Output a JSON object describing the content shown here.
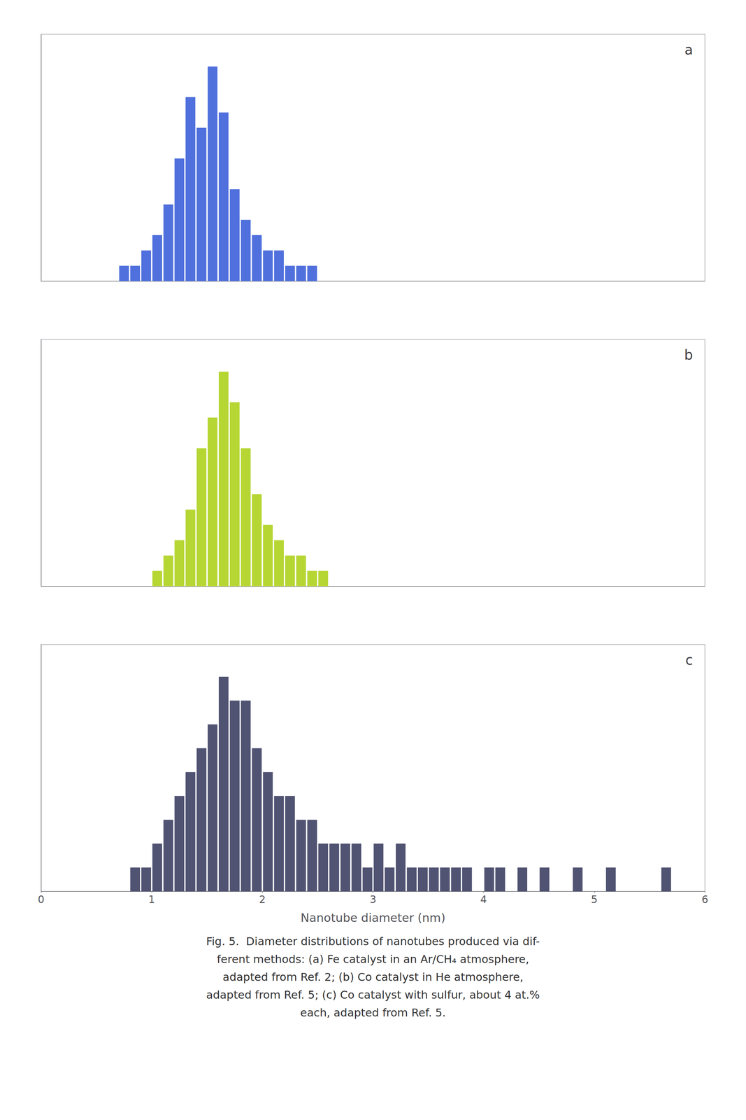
{
  "chart_data": [
    {
      "type": "bar",
      "title": "a",
      "x": [
        0.7,
        0.8,
        0.9,
        1.0,
        1.1,
        1.2,
        1.3,
        1.4,
        1.5,
        1.6,
        1.7,
        1.8,
        1.9,
        2.0,
        2.1,
        2.2,
        2.3,
        2.4,
        2.5
      ],
      "values": [
        1,
        1,
        2,
        3,
        5,
        8,
        12,
        10,
        14,
        11,
        6,
        4,
        3,
        2,
        2,
        1,
        1,
        1,
        0
      ],
      "xlim": [
        0,
        6
      ],
      "ylim": [
        0,
        16.1
      ],
      "grid": false,
      "tick_labels": false
    },
    {
      "type": "bar",
      "title": "b",
      "x": [
        1.0,
        1.1,
        1.2,
        1.3,
        1.4,
        1.5,
        1.6,
        1.7,
        1.8,
        1.9,
        2.0,
        2.1,
        2.2,
        2.3,
        2.4,
        2.5,
        2.6,
        2.7
      ],
      "values": [
        1,
        2,
        3,
        5,
        9,
        11,
        14,
        12,
        9,
        6,
        4,
        3,
        2,
        2,
        1,
        1,
        0,
        0
      ],
      "xlim": [
        0,
        6
      ],
      "ylim": [
        0,
        16.1
      ],
      "grid": false,
      "tick_labels": false
    },
    {
      "type": "bar",
      "title": "c",
      "x": [
        0.8,
        0.9,
        1.0,
        1.1,
        1.2,
        1.3,
        1.4,
        1.5,
        1.6,
        1.7,
        1.8,
        1.9,
        2.0,
        2.1,
        2.2,
        2.3,
        2.4,
        2.5,
        2.6,
        2.7,
        2.8,
        2.9,
        3.0,
        3.1,
        3.2,
        3.3,
        3.4,
        3.5,
        3.6,
        3.7,
        3.8,
        3.9,
        4.0,
        4.1,
        4.2,
        4.3,
        4.4,
        4.5,
        4.6,
        4.7,
        4.8,
        4.9,
        5.0,
        5.1,
        5.2,
        5.3,
        5.4,
        5.5,
        5.6,
        5.7,
        5.8
      ],
      "values": [
        1,
        1,
        2,
        3,
        4,
        5,
        6,
        7,
        9,
        8,
        8,
        6,
        5,
        4,
        4,
        3,
        3,
        2,
        2,
        2,
        2,
        1,
        2,
        1,
        2,
        1,
        1,
        1,
        1,
        1,
        1,
        0,
        1,
        1,
        0,
        1,
        0,
        1,
        0,
        0,
        1,
        0,
        0,
        1,
        0,
        0,
        0,
        0,
        1,
        0,
        0
      ],
      "xlim": [
        0,
        6
      ],
      "xticks": [
        0,
        1,
        2,
        3,
        4,
        5,
        6
      ],
      "ylim": [
        0,
        10.35
      ],
      "xlabel": "Nanotube diameter (nm)",
      "grid": false,
      "tick_labels": "x",
      "annotations": [
        "Fig. 5.  Diameter distributions of nanotubes produced via dif-",
        "ferent methods: (a) Fe catalyst in an Ar/CH₄ atmosphere,",
        "adapted from Ref. 2; (b) Co catalyst in He atmosphere,",
        "adapted from Ref. 5; (c) Co catalyst with sulfur, about 4 at.%",
        "each, adapted from Ref. 5."
      ]
    }
  ]
}
